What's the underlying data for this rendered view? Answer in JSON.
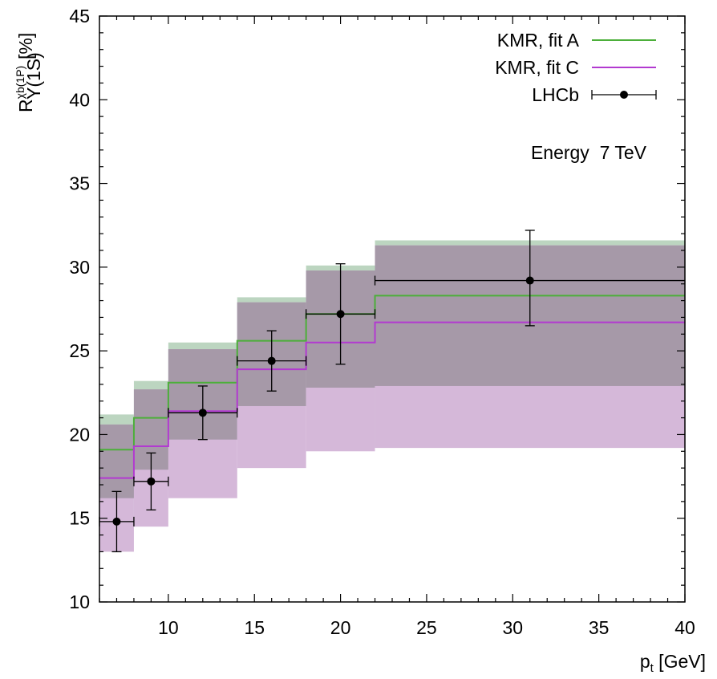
{
  "chart_data": {
    "type": "step",
    "x_axis": {
      "label_main": "p",
      "label_sub": "t",
      "label_unit": " [GeV]",
      "range": [
        6,
        40
      ],
      "ticks": [
        10,
        15,
        20,
        25,
        30,
        35,
        40
      ]
    },
    "y_axis": {
      "label_main": "R",
      "label_sup": "χb(1P)",
      "label_sub": "Υ(1S)",
      "label_unit": "[%]",
      "range": [
        10,
        45
      ],
      "ticks": [
        10,
        15,
        20,
        25,
        30,
        35,
        40,
        45
      ]
    },
    "annotation": "Energy  7 TeV",
    "legend": {
      "position": "top-right",
      "entries": [
        "KMR, fit A",
        "KMR, fit C",
        "LHCb"
      ]
    },
    "bins": [
      6,
      8,
      10,
      14,
      18,
      22,
      40
    ],
    "series": [
      {
        "name": "KMR, fit A",
        "color": "#4caf3a",
        "band_color": "#bcd5c0",
        "central": [
          19.1,
          21.0,
          23.1,
          25.6,
          27.2,
          28.3
        ],
        "band_low": [
          16.2,
          17.9,
          19.7,
          21.7,
          22.8,
          22.9
        ],
        "band_high": [
          21.2,
          23.2,
          25.5,
          28.2,
          30.1,
          31.6
        ]
      },
      {
        "name": "KMR, fit C",
        "color": "#b23ad0",
        "band_color": "#d5b8d9",
        "central": [
          17.4,
          19.3,
          21.4,
          23.9,
          25.5,
          26.7
        ],
        "band_low": [
          13.0,
          14.5,
          16.2,
          18.0,
          19.0,
          19.2
        ],
        "band_high": [
          20.6,
          22.7,
          25.1,
          27.9,
          29.8,
          31.3
        ]
      }
    ],
    "overlap_color": "#a699a8",
    "lhcb": {
      "name": "LHCb",
      "color": "#000000",
      "points": [
        {
          "x": 7,
          "xlo": 6,
          "xhi": 8,
          "y": 14.8,
          "ylo": 13.0,
          "yhi": 16.6
        },
        {
          "x": 9,
          "xlo": 8,
          "xhi": 10,
          "y": 17.2,
          "ylo": 15.5,
          "yhi": 18.9
        },
        {
          "x": 12,
          "xlo": 10,
          "xhi": 14,
          "y": 21.3,
          "ylo": 19.7,
          "yhi": 22.9
        },
        {
          "x": 16,
          "xlo": 14,
          "xhi": 18,
          "y": 24.4,
          "ylo": 22.6,
          "yhi": 26.2
        },
        {
          "x": 20,
          "xlo": 18,
          "xhi": 22,
          "y": 27.2,
          "ylo": 24.2,
          "yhi": 30.2
        },
        {
          "x": 31,
          "xlo": 22,
          "xhi": 40,
          "y": 29.2,
          "ylo": 26.5,
          "yhi": 32.2
        }
      ]
    }
  }
}
